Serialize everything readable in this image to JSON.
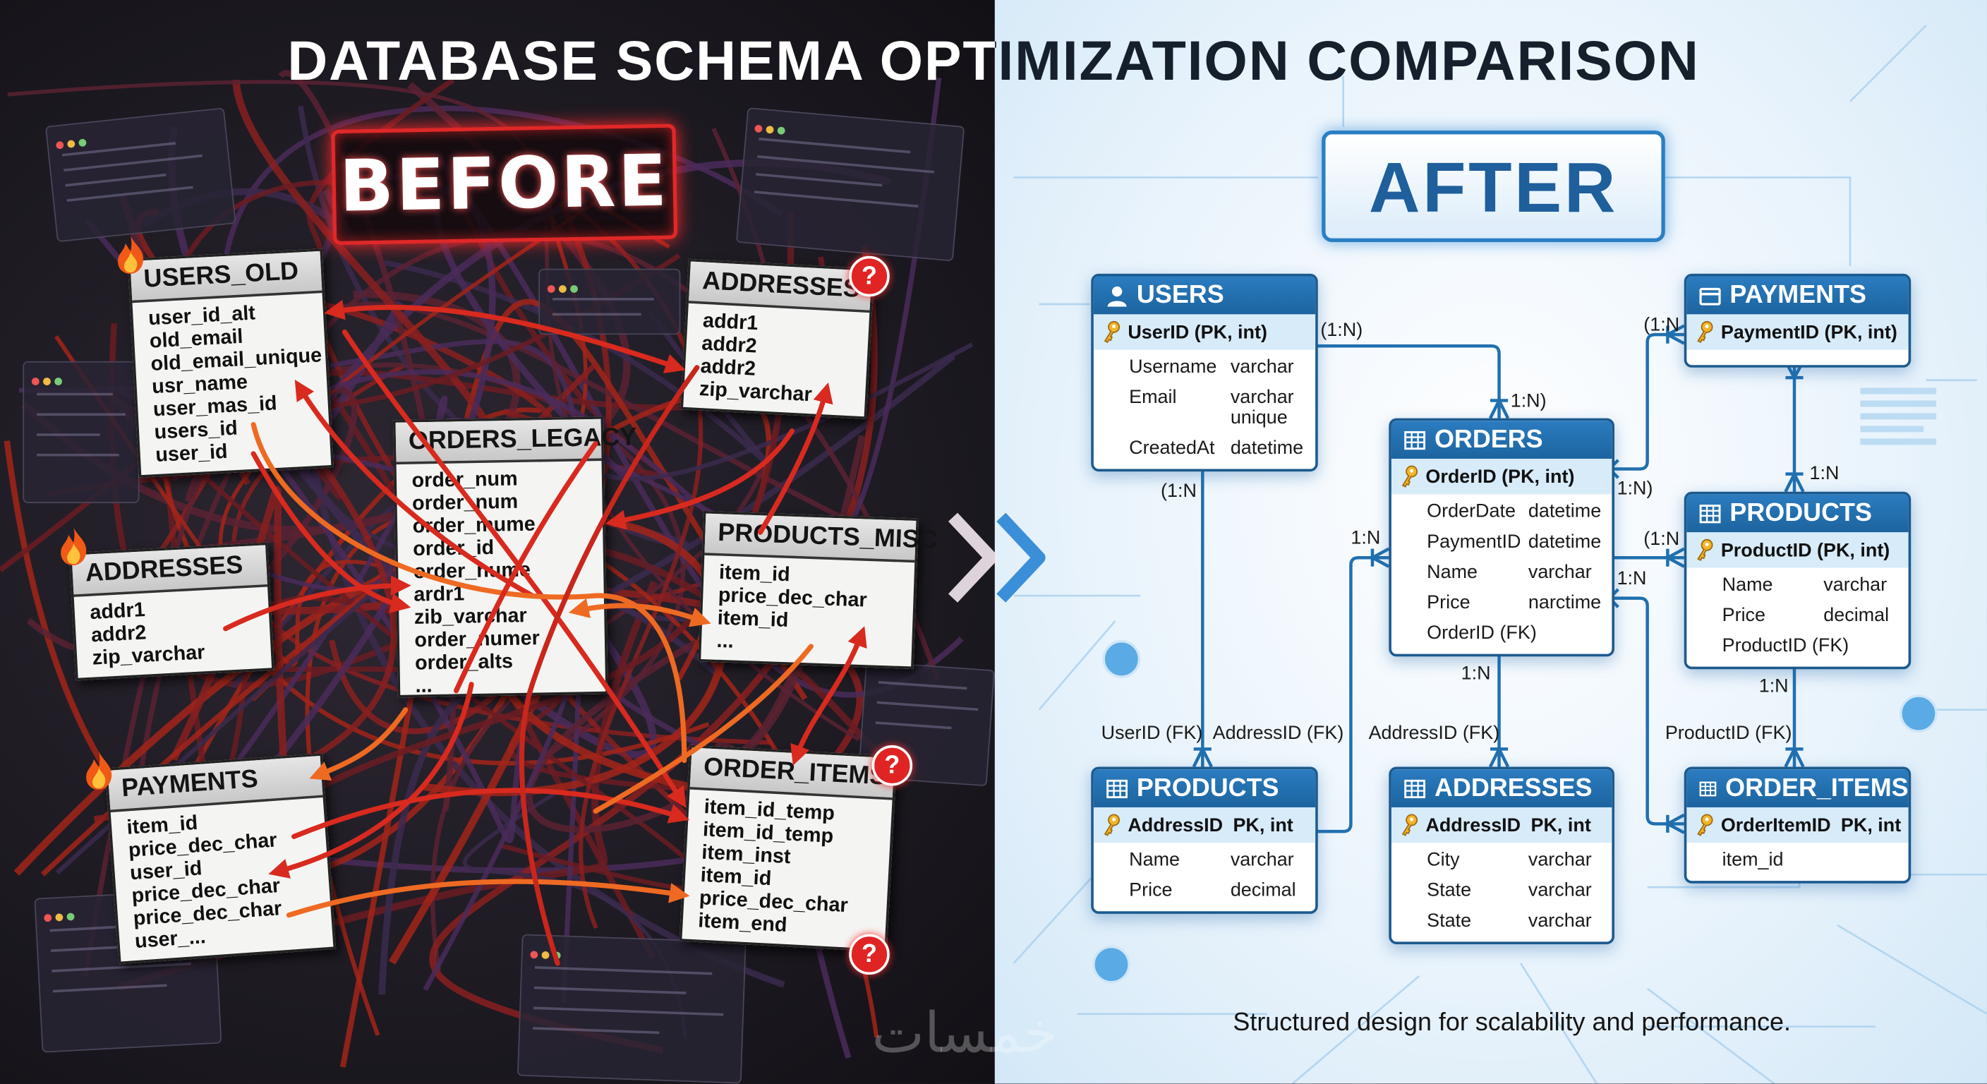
{
  "title": "DATABASE SCHEMA OPTIMIZATION COMPARISON",
  "watermark": "خمسات",
  "colors": {
    "before_accent": "#e02828",
    "wire_red": "#c9261c",
    "wire_orange": "#e8601f",
    "after_accent": "#2272b3",
    "pk_row": "#d7ebf9"
  },
  "before": {
    "label": "BEFORE",
    "tables": [
      {
        "name": "USERS_OLD",
        "badge": "flame-icon",
        "columns": [
          "user_id_alt",
          "old_email",
          "old_email_unique",
          "usr_name",
          "user_mas_id",
          "users_id",
          "user_id"
        ]
      },
      {
        "name": "ADDRESSES",
        "badge": "question-icon",
        "columns": [
          "addr1",
          "addr2",
          "addr2",
          "zip_varchar"
        ]
      },
      {
        "name": "ORDERS_LEGACY",
        "badge": "",
        "columns": [
          "order_num",
          "order_num",
          "order_mume",
          "order_id",
          "order_nume",
          "ardr1",
          "zib_varchar",
          "order_numer",
          "order_alts",
          "..."
        ]
      },
      {
        "name": "ADDRESSES",
        "badge": "flame-icon",
        "columns": [
          "addr1",
          "addr2",
          "zip_varchar"
        ]
      },
      {
        "name": "PRODUCTS_MISC",
        "badge": "",
        "columns": [
          "item_id",
          "price_dec_char",
          "item_id",
          "..."
        ]
      },
      {
        "name": "PAYMENTS",
        "badge": "flame-icon",
        "columns": [
          "item_id",
          "price_dec_char",
          "user_id",
          "price_dec_char",
          "price_dec_char",
          "user_..."
        ]
      },
      {
        "name": "ORDER_ITEMS",
        "badge": "question-icon",
        "columns": [
          "item_id_temp",
          "item_id_temp",
          "item_inst",
          "item_id",
          "price_dec_char",
          "item_end"
        ]
      }
    ],
    "question_mark": "?"
  },
  "after": {
    "label": "AFTER",
    "tables": [
      {
        "name": "USERS",
        "icon": "user-icon",
        "pk": {
          "name": "UserID (PK, int)",
          "type": ""
        },
        "columns": [
          {
            "name": "Username",
            "type": "varchar"
          },
          {
            "name": "Email",
            "type": "varchar unique"
          },
          {
            "name": "CreatedAt",
            "type": "datetime"
          }
        ]
      },
      {
        "name": "PAYMENTS",
        "icon": "card-icon",
        "pk": {
          "name": "PaymentID (PK, int)",
          "type": ""
        },
        "columns": []
      },
      {
        "name": "ORDERS",
        "icon": "table-icon",
        "pk": {
          "name": "OrderID (PK, int)",
          "type": ""
        },
        "columns": [
          {
            "name": "OrderDate",
            "type": "datetime"
          },
          {
            "name": "PaymentID",
            "type": "datetime"
          },
          {
            "name": "Name",
            "type": "varchar"
          },
          {
            "name": "Price",
            "type": "narctime"
          },
          {
            "name": "OrderID (FK)",
            "type": ""
          }
        ]
      },
      {
        "name": "PRODUCTS",
        "icon": "table-icon",
        "pk": {
          "name": "ProductID (PK, int)",
          "type": ""
        },
        "columns": [
          {
            "name": "Name",
            "type": "varchar"
          },
          {
            "name": "Price",
            "type": "decimal"
          },
          {
            "name": "ProductID (FK)",
            "type": ""
          }
        ]
      },
      {
        "name": "PRODUCTS",
        "icon": "table-icon",
        "pk": {
          "name": "AddressID",
          "type": "PK, int"
        },
        "columns": [
          {
            "name": "Name",
            "type": "varchar"
          },
          {
            "name": "Price",
            "type": "decimal"
          }
        ]
      },
      {
        "name": "ADDRESSES",
        "icon": "table-icon",
        "pk": {
          "name": "AddressID",
          "type": "PK, int"
        },
        "columns": [
          {
            "name": "City",
            "type": "varchar"
          },
          {
            "name": "State",
            "type": "varchar"
          },
          {
            "name": "State",
            "type": "varchar"
          }
        ]
      },
      {
        "name": "ORDER_ITEMS",
        "icon": "table-icon",
        "pk": {
          "name": "OrderItemID",
          "type": "PK, int"
        },
        "columns": [
          {
            "name": "item_id",
            "type": ""
          }
        ]
      }
    ],
    "relationship_labels": [
      "(1:N)",
      "1:N)",
      "(1:N",
      "1:N",
      "(1:N",
      "1:N)",
      "1:N",
      "(1:N",
      "1:N",
      "1:N",
      "1:N"
    ],
    "fk_labels": [
      "UserID (FK)",
      "AddressID (FK)",
      "AddressID (FK)",
      "ProductID (FK)"
    ],
    "caption": "Structured design for scalability and performance."
  }
}
